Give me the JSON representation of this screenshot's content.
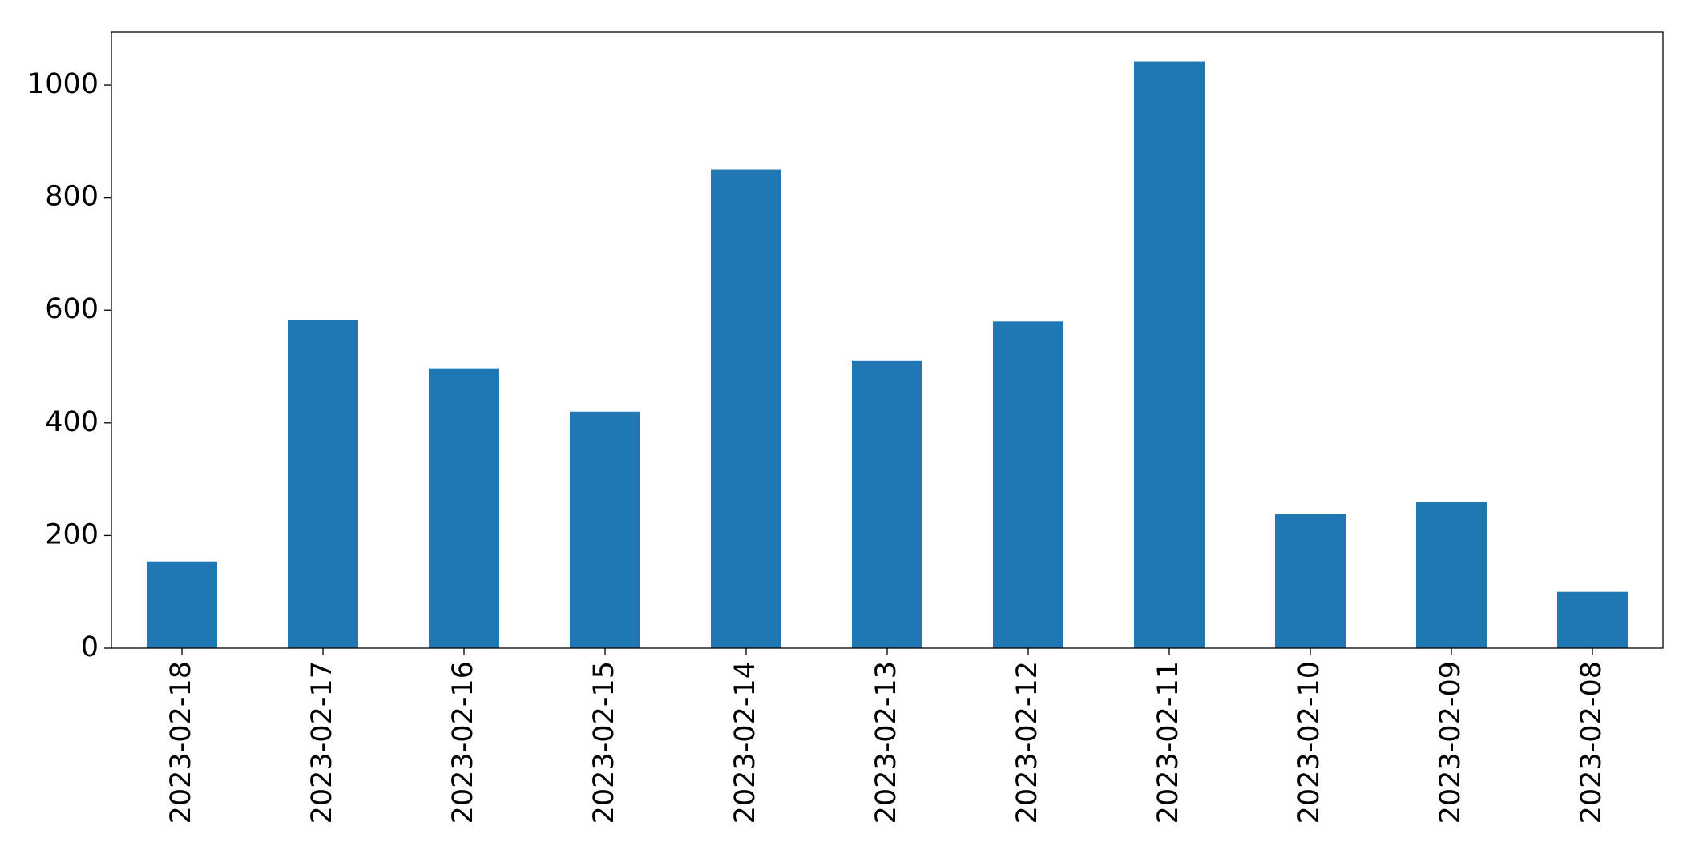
{
  "chart_data": {
    "type": "bar",
    "categories": [
      "2023-02-18",
      "2023-02-17",
      "2023-02-16",
      "2023-02-15",
      "2023-02-14",
      "2023-02-13",
      "2023-02-12",
      "2023-02-11",
      "2023-02-10",
      "2023-02-09",
      "2023-02-08"
    ],
    "values": [
      154,
      582,
      497,
      420,
      850,
      511,
      580,
      1042,
      238,
      259,
      100
    ],
    "color": "#1f77b4",
    "ylim": [
      0,
      1094
    ],
    "yticks": [
      0,
      200,
      400,
      600,
      800,
      1000
    ],
    "grid": false
  }
}
